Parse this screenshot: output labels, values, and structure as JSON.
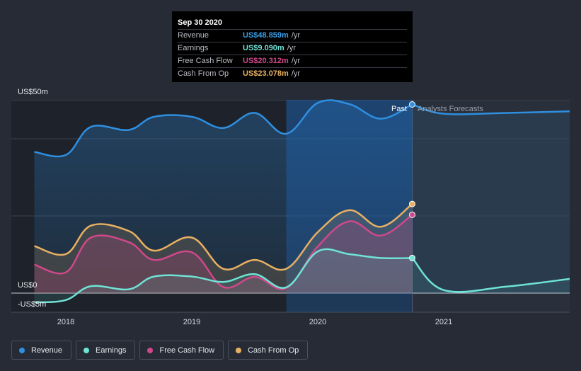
{
  "tooltip": {
    "date": "Sep 30 2020",
    "rows": [
      {
        "name": "Revenue",
        "value": "US$48.859m",
        "unit": "/yr",
        "color": "#3a9ee6"
      },
      {
        "name": "Earnings",
        "value": "US$9.090m",
        "unit": "/yr",
        "color": "#6fe3d6"
      },
      {
        "name": "Free Cash Flow",
        "value": "US$20.312m",
        "unit": "/yr",
        "color": "#d0488a"
      },
      {
        "name": "Cash From Op",
        "value": "US$23.078m",
        "unit": "/yr",
        "color": "#e8b062"
      }
    ]
  },
  "legend": [
    {
      "label": "Revenue",
      "color": "#2f8fe0"
    },
    {
      "label": "Earnings",
      "color": "#6fe3d6"
    },
    {
      "label": "Free Cash Flow",
      "color": "#d0488a"
    },
    {
      "label": "Cash From Op",
      "color": "#e8b062"
    }
  ],
  "chart_data": {
    "type": "area",
    "title": "",
    "xlabel": "",
    "ylabel": "",
    "ylim": [
      -5,
      50
    ],
    "y_tick_labels": [
      "US$50m",
      "US$0",
      "-US$5m"
    ],
    "x_tick_labels": [
      "2018",
      "2019",
      "2020",
      "2021"
    ],
    "past_label": "Past",
    "forecast_label": "Analysts Forecasts",
    "past_end_x": 2020.75,
    "highlight_start_x": 2019.75,
    "series": [
      {
        "name": "Revenue",
        "color": "#2f8fe0",
        "points": [
          [
            2017.75,
            36.6
          ],
          [
            2018.0,
            35.8
          ],
          [
            2018.2,
            43.1
          ],
          [
            2018.5,
            42.3
          ],
          [
            2018.7,
            45.7
          ],
          [
            2019.0,
            45.7
          ],
          [
            2019.25,
            42.8
          ],
          [
            2019.5,
            46.7
          ],
          [
            2019.75,
            41.3
          ],
          [
            2020.0,
            49.3
          ],
          [
            2020.25,
            49.0
          ],
          [
            2020.5,
            45.2
          ],
          [
            2020.75,
            48.9
          ]
        ],
        "forecast": [
          [
            2020.75,
            48.9
          ],
          [
            2021.0,
            46.5
          ],
          [
            2021.5,
            46.7
          ],
          [
            2022.0,
            47.1
          ]
        ]
      },
      {
        "name": "Earnings",
        "color": "#6fe3d6",
        "points": [
          [
            2017.75,
            -2.4
          ],
          [
            2018.0,
            -1.8
          ],
          [
            2018.2,
            1.8
          ],
          [
            2018.5,
            1.0
          ],
          [
            2018.7,
            4.3
          ],
          [
            2019.0,
            4.3
          ],
          [
            2019.25,
            2.9
          ],
          [
            2019.5,
            4.9
          ],
          [
            2019.75,
            1.5
          ],
          [
            2020.0,
            10.8
          ],
          [
            2020.25,
            10.1
          ],
          [
            2020.5,
            9.1
          ],
          [
            2020.75,
            9.1
          ]
        ],
        "forecast": [
          [
            2020.75,
            9.1
          ],
          [
            2021.0,
            0.8
          ],
          [
            2021.5,
            1.7
          ],
          [
            2022.0,
            3.7
          ]
        ]
      },
      {
        "name": "Free Cash Flow",
        "color": "#d0488a",
        "points": [
          [
            2017.75,
            7.4
          ],
          [
            2018.0,
            5.4
          ],
          [
            2018.2,
            14.4
          ],
          [
            2018.5,
            13.2
          ],
          [
            2018.7,
            8.6
          ],
          [
            2019.0,
            10.6
          ],
          [
            2019.25,
            1.6
          ],
          [
            2019.5,
            4.2
          ],
          [
            2019.75,
            1.3
          ],
          [
            2020.0,
            12.1
          ],
          [
            2020.25,
            18.6
          ],
          [
            2020.5,
            14.9
          ],
          [
            2020.75,
            20.3
          ]
        ]
      },
      {
        "name": "Cash From Op",
        "color": "#e8b062",
        "points": [
          [
            2017.75,
            12.2
          ],
          [
            2018.0,
            10.1
          ],
          [
            2018.2,
            17.5
          ],
          [
            2018.5,
            16.1
          ],
          [
            2018.7,
            11.0
          ],
          [
            2019.0,
            14.4
          ],
          [
            2019.25,
            6.3
          ],
          [
            2019.5,
            8.6
          ],
          [
            2019.75,
            6.3
          ],
          [
            2020.0,
            15.8
          ],
          [
            2020.25,
            21.5
          ],
          [
            2020.5,
            17.2
          ],
          [
            2020.75,
            23.1
          ]
        ]
      }
    ]
  }
}
